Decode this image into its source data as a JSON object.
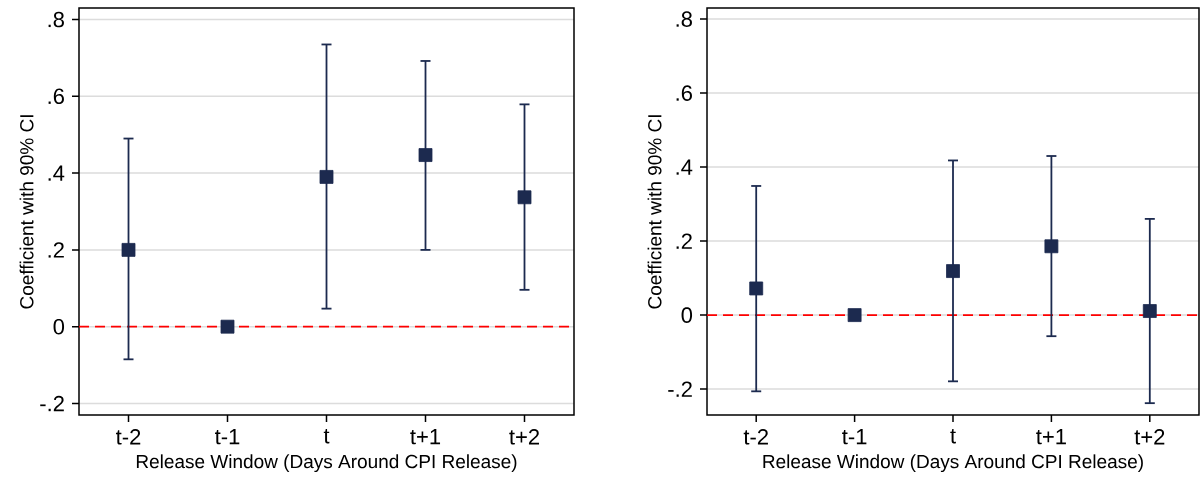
{
  "chart_data": [
    {
      "type": "scatter",
      "categories": [
        "t-2",
        "t-1",
        "t",
        "t+1",
        "t+2"
      ],
      "xlabel": "Release Window (Days Around CPI Release)",
      "ylabel": "Coefficient with 90% CI",
      "series": [
        {
          "color": "#1c2a4f",
          "values": [
            0.2,
            0,
            0.39,
            0.447,
            0.337
          ],
          "errors": [
            [
              -0.085,
              0.49
            ],
            null,
            [
              0.047,
              0.735
            ],
            [
              0.2,
              0.692
            ],
            [
              0.096,
              0.579
            ]
          ]
        }
      ],
      "ylim": [
        -0.23,
        0.83
      ],
      "yticks": [
        {
          "value": -0.2,
          "label": "-.2"
        },
        0,
        {
          "value": 0.2,
          "label": ".2"
        },
        {
          "value": 0.4,
          "label": ".4"
        },
        {
          "value": 0.6,
          "label": ".6"
        },
        {
          "value": 0.8,
          "label": ".8"
        }
      ],
      "ref_lines": [
        {
          "axis": "y",
          "value": 0,
          "color": "#ff0000",
          "line_style": "dashed"
        }
      ],
      "grid": "y",
      "marker": "square"
    },
    {
      "type": "scatter",
      "categories": [
        "t-2",
        "t-1",
        "t",
        "t+1",
        "t+2"
      ],
      "xlabel": "Release Window (Days Around CPI Release)",
      "ylabel": "Coefficient with 90% CI",
      "series": [
        {
          "color": "#1c2a4f",
          "values": [
            0.072,
            0,
            0.119,
            0.186,
            0.011
          ],
          "errors": [
            [
              -0.206,
              0.349
            ],
            null,
            [
              -0.179,
              0.418
            ],
            [
              -0.057,
              0.43
            ],
            [
              -0.238,
              0.26
            ]
          ]
        }
      ],
      "ylim": [
        -0.27,
        0.83
      ],
      "yticks": [
        {
          "value": -0.2,
          "label": "-.2"
        },
        0,
        {
          "value": 0.2,
          "label": ".2"
        },
        {
          "value": 0.4,
          "label": ".4"
        },
        {
          "value": 0.6,
          "label": ".6"
        },
        {
          "value": 0.8,
          "label": ".8"
        }
      ],
      "ref_lines": [
        {
          "axis": "y",
          "value": 0,
          "color": "#ff0000",
          "line_style": "dashed"
        }
      ],
      "grid": "y",
      "marker": "square"
    }
  ]
}
